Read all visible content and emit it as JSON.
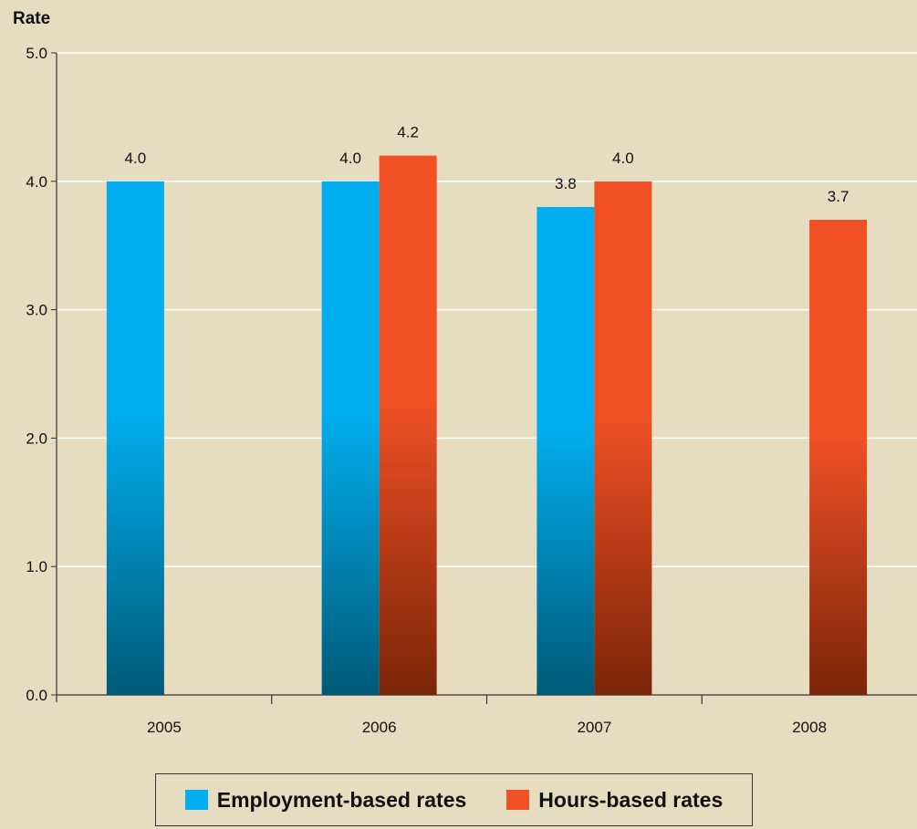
{
  "chart_data": {
    "type": "bar",
    "ylabel": "Rate",
    "ylim": [
      0,
      5
    ],
    "yticks": [
      "0.0",
      "1.0",
      "2.0",
      "3.0",
      "4.0",
      "5.0"
    ],
    "categories": [
      "2005",
      "2006",
      "2007",
      "2008"
    ],
    "series": [
      {
        "name": "Employment-based rates",
        "values": [
          4.0,
          4.0,
          3.8,
          null
        ],
        "labels": [
          "4.0",
          "4.0",
          "3.8",
          ""
        ],
        "color": "#00aeef",
        "color_dark": "#005a78"
      },
      {
        "name": "Hours-based rates",
        "values": [
          null,
          4.2,
          4.0,
          3.7
        ],
        "labels": [
          "",
          "4.2",
          "4.0",
          "3.7"
        ],
        "color": "#f15025",
        "color_dark": "#7a2508"
      }
    ],
    "grid": true,
    "legend_position": "bottom"
  }
}
